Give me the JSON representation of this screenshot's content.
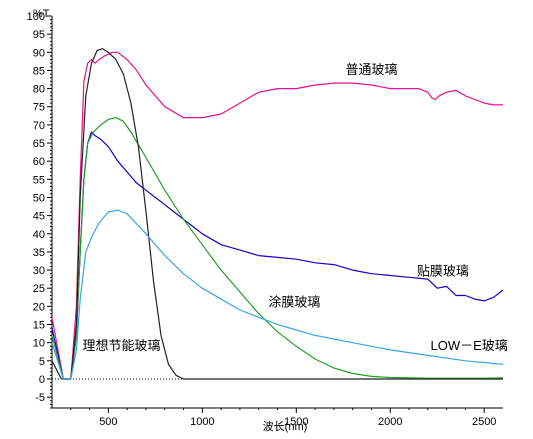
{
  "chart_data": {
    "type": "line",
    "title": "",
    "xlabel": "波长(nm)",
    "ylabel": "%T",
    "xlim": [
      200,
      2600
    ],
    "ylim": [
      -8,
      100
    ],
    "x_ticks": [
      500,
      1000,
      1500,
      2000,
      2500
    ],
    "y_ticks": [
      -5,
      0,
      5,
      10,
      15,
      20,
      25,
      30,
      35,
      40,
      45,
      50,
      55,
      60,
      65,
      70,
      75,
      80,
      85,
      90,
      95,
      100
    ],
    "grid": false,
    "legend": "none",
    "reference_line": {
      "y": 0,
      "style": "dotted"
    },
    "series": [
      {
        "name": "普通玻璃",
        "color": "#e8108c",
        "x": [
          200,
          260,
          300,
          330,
          350,
          370,
          390,
          410,
          430,
          450,
          480,
          520,
          550,
          600,
          650,
          700,
          800,
          900,
          1000,
          1100,
          1200,
          1300,
          1400,
          1500,
          1600,
          1700,
          1800,
          1900,
          2000,
          2100,
          2150,
          2200,
          2220,
          2240,
          2260,
          2300,
          2350,
          2400,
          2450,
          2500,
          2550,
          2600
        ],
        "y": [
          17,
          0,
          0,
          20,
          55,
          82,
          87,
          88,
          87,
          88,
          89,
          90,
          90,
          88,
          85,
          81,
          75,
          72,
          72,
          73,
          76,
          79,
          80,
          80,
          81,
          81.5,
          81.5,
          81,
          80,
          80,
          80,
          79,
          77.5,
          77,
          78,
          79,
          79.5,
          78,
          77,
          76,
          75.5,
          75.5
        ],
        "label_at": {
          "x": 1900,
          "y": 84
        }
      },
      {
        "name": "贴膜玻璃",
        "color": "#1a00c8",
        "x": [
          200,
          260,
          300,
          330,
          350,
          370,
          390,
          410,
          430,
          460,
          500,
          550,
          600,
          650,
          700,
          750,
          800,
          850,
          900,
          950,
          1000,
          1100,
          1200,
          1300,
          1400,
          1500,
          1600,
          1700,
          1800,
          1900,
          2000,
          2100,
          2200,
          2250,
          2300,
          2350,
          2400,
          2450,
          2500,
          2550,
          2600
        ],
        "y": [
          14,
          0,
          0,
          12,
          35,
          55,
          65,
          68,
          67,
          66,
          64,
          60,
          57,
          54,
          52,
          50,
          48,
          46,
          44,
          42,
          40,
          37,
          35.5,
          34,
          33.5,
          33,
          32,
          31.5,
          30,
          29,
          28.5,
          28,
          27.5,
          25,
          25.5,
          23,
          23,
          22,
          21.5,
          22.5,
          24.5
        ],
        "label_at": {
          "x": 2280,
          "y": 28.5
        }
      },
      {
        "name": "涂膜玻璃",
        "color": "#21a121",
        "x": [
          200,
          260,
          300,
          330,
          350,
          370,
          390,
          420,
          460,
          500,
          540,
          580,
          620,
          700,
          800,
          900,
          1000,
          1100,
          1200,
          1300,
          1400,
          1500,
          1600,
          1700,
          1800,
          1900,
          2000,
          2100,
          2200,
          2300,
          2400,
          2500,
          2600
        ],
        "y": [
          12,
          0,
          0,
          12,
          35,
          55,
          65,
          68,
          70,
          71.5,
          72,
          71,
          68,
          61,
          52,
          44,
          37,
          30,
          24,
          18,
          13,
          9,
          5.5,
          3,
          1.5,
          0.7,
          0.4,
          0.3,
          0.2,
          0.2,
          0.2,
          0.2,
          0.3
        ],
        "label_at": {
          "x": 1490,
          "y": 20
        }
      },
      {
        "name": "理想节能玻璃",
        "color": "#222222",
        "x": [
          200,
          250,
          300,
          330,
          350,
          380,
          410,
          440,
          470,
          500,
          540,
          580,
          620,
          660,
          700,
          740,
          780,
          820,
          860,
          900,
          1000,
          1200,
          1500,
          2000,
          2600
        ],
        "y": [
          5,
          0,
          0,
          15,
          50,
          78,
          87,
          90.5,
          91,
          90,
          88,
          84,
          76,
          64,
          46,
          27,
          12,
          4,
          1,
          0,
          0,
          0,
          0,
          0,
          0
        ],
        "label_at": {
          "x": 570,
          "y": 8
        }
      },
      {
        "name": "LOW－E玻璃",
        "color": "#3aa5e8",
        "x": [
          200,
          260,
          300,
          330,
          350,
          380,
          410,
          450,
          500,
          550,
          600,
          700,
          800,
          900,
          1000,
          1200,
          1400,
          1600,
          1800,
          2000,
          2200,
          2400,
          2600
        ],
        "y": [
          10,
          0,
          0,
          8,
          22,
          35,
          39,
          43,
          46,
          46.5,
          45.5,
          40,
          34,
          29,
          25,
          19,
          15,
          12,
          10,
          8,
          6.5,
          5,
          4
        ],
        "label_at": {
          "x": 2420,
          "y": 8
        }
      }
    ]
  }
}
